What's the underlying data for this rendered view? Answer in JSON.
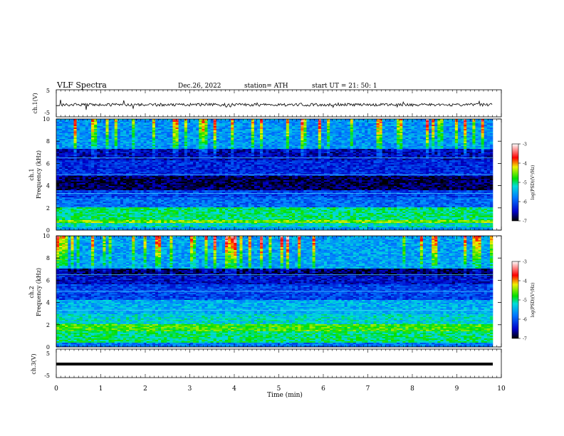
{
  "header": {
    "title": "VLF  Spectra",
    "date": "Dec.26, 2022",
    "station": "station= ATH",
    "start": "start  UT  =    21: 50: 1"
  },
  "chart_data": [
    {
      "type": "line",
      "ylabel": "ch.1(V)",
      "ylim": [
        -5,
        5
      ],
      "yticks": [
        "5",
        "-5"
      ],
      "xlim": [
        0,
        10
      ],
      "description_values": {
        "baseline": 0.6,
        "noise_amplitude": 0.3
      }
    },
    {
      "type": "heatmap",
      "ylabel": "ch.1\nFrequency (kHz)",
      "ylabel_top": "ch.1",
      "ylabel_bottom": "Frequency  (kHz)",
      "ylim": [
        0,
        10
      ],
      "yticks": [
        "0",
        "2",
        "4",
        "6",
        "8",
        "10"
      ],
      "xlim": [
        0,
        10
      ],
      "colorbar": {
        "label": "log(PSD)(V²/Hz)",
        "range": [
          -7,
          -3
        ],
        "ticks": [
          "-3",
          "-4",
          "-5",
          "-6",
          "-7"
        ],
        "colors": [
          "#000000",
          "#0000c8",
          "#0078ff",
          "#00dcdc",
          "#00e000",
          "#f0f000",
          "#ff0000",
          "#ffffff"
        ]
      },
      "bands_khz": [
        {
          "from": 0.0,
          "to": 0.2,
          "level": 0.35
        },
        {
          "from": 0.2,
          "to": 0.6,
          "level": 0.45
        },
        {
          "from": 0.6,
          "to": 0.9,
          "level": 0.62
        },
        {
          "from": 0.9,
          "to": 2.1,
          "level": 0.5
        },
        {
          "from": 2.1,
          "to": 3.0,
          "level": 0.28
        },
        {
          "from": 3.0,
          "to": 3.6,
          "level": 0.22
        },
        {
          "from": 3.6,
          "to": 4.9,
          "level": 0.05
        },
        {
          "from": 4.9,
          "to": 6.3,
          "level": 0.18
        },
        {
          "from": 6.3,
          "to": 7.3,
          "level": 0.12
        },
        {
          "from": 7.3,
          "to": 10.0,
          "level": 0.34
        }
      ]
    },
    {
      "type": "heatmap",
      "ylabel_top": "ch.2",
      "ylabel_bottom": "Frequency  (kHz)",
      "ylim": [
        0,
        10
      ],
      "yticks": [
        "0",
        "2",
        "4",
        "6",
        "8",
        "10"
      ],
      "xlim": [
        0,
        10
      ],
      "colorbar": {
        "label": "log(PSD)(V²/Hz)",
        "range": [
          -7,
          -3
        ],
        "ticks": [
          "-3",
          "-4",
          "-5",
          "-6",
          "-7"
        ]
      },
      "bands_khz": [
        {
          "from": 0.0,
          "to": 0.4,
          "level": 0.3
        },
        {
          "from": 0.4,
          "to": 1.4,
          "level": 0.5
        },
        {
          "from": 1.4,
          "to": 2.1,
          "level": 0.58
        },
        {
          "from": 2.1,
          "to": 3.0,
          "level": 0.44
        },
        {
          "from": 3.0,
          "to": 4.2,
          "level": 0.38
        },
        {
          "from": 4.2,
          "to": 5.6,
          "level": 0.22
        },
        {
          "from": 5.6,
          "to": 6.4,
          "level": 0.14
        },
        {
          "from": 6.4,
          "to": 7.1,
          "level": 0.06
        },
        {
          "from": 7.1,
          "to": 10.0,
          "level": 0.36
        }
      ]
    },
    {
      "type": "line",
      "ylabel": "ch.3(V)",
      "ylim": [
        -5,
        5
      ],
      "yticks": [
        "5",
        "-5"
      ],
      "xlabel": "Time  (min)",
      "xlim": [
        0,
        10
      ],
      "xticks": [
        "0",
        "1",
        "2",
        "3",
        "4",
        "5",
        "6",
        "7",
        "8",
        "9",
        "10"
      ],
      "description_values": {
        "baseline": -2.0
      }
    }
  ]
}
